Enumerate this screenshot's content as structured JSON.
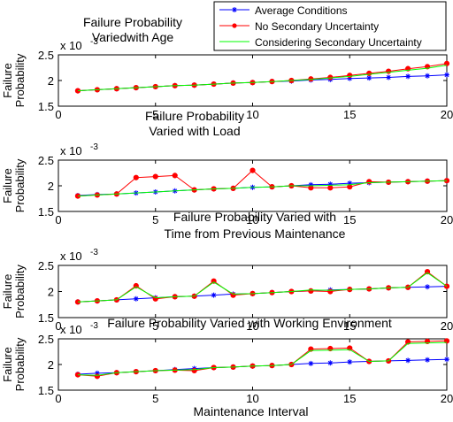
{
  "colors": {
    "average": "#0000ff",
    "no_secondary": "#ff0000",
    "considering_secondary": "#00ff00",
    "axis": "#000000"
  },
  "legend": {
    "items": [
      {
        "label": "Average Conditions",
        "color_key": "average",
        "marker": "star"
      },
      {
        "label": "No Secondary Uncertainty",
        "color_key": "no_secondary",
        "marker": "dot"
      },
      {
        "label": "Considering Secondary Uncertainty",
        "color_key": "considering_secondary",
        "marker": "none"
      }
    ]
  },
  "shared_xlabel": "Maintenance Interval",
  "chart_data": [
    {
      "type": "line",
      "title": "Failure Probability\nVariedwith Age",
      "ylabel": "Failure\nProbability",
      "xlabel": "",
      "exponent_label": "x 10",
      "exponent_power": "-3",
      "xlim": [
        0,
        20
      ],
      "ylim": [
        1.5,
        2.5
      ],
      "xticks": [
        "0",
        "5",
        "10",
        "15",
        "20"
      ],
      "yticks": [
        "1.5",
        "2",
        "2.5"
      ],
      "x": [
        1,
        2,
        3,
        4,
        5,
        6,
        7,
        8,
        9,
        10,
        11,
        12,
        13,
        14,
        15,
        16,
        17,
        18,
        19,
        20
      ],
      "series": [
        {
          "name": "Average Conditions",
          "color_key": "average",
          "marker": "star",
          "values": [
            1.8,
            1.82,
            1.84,
            1.86,
            1.88,
            1.9,
            1.91,
            1.93,
            1.95,
            1.96,
            1.98,
            1.99,
            2.01,
            2.02,
            2.04,
            2.05,
            2.06,
            2.08,
            2.09,
            2.11
          ]
        },
        {
          "name": "No Secondary Uncertainty",
          "color_key": "no_secondary",
          "marker": "dot",
          "values": [
            1.8,
            1.82,
            1.84,
            1.86,
            1.88,
            1.9,
            1.91,
            1.93,
            1.95,
            1.96,
            1.98,
            2.0,
            2.03,
            2.06,
            2.1,
            2.14,
            2.18,
            2.23,
            2.27,
            2.33
          ]
        },
        {
          "name": "Considering Secondary Uncertainty",
          "color_key": "considering_secondary",
          "marker": "none",
          "values": [
            1.8,
            1.82,
            1.84,
            1.86,
            1.88,
            1.9,
            1.91,
            1.93,
            1.95,
            1.96,
            1.98,
            2.0,
            2.02,
            2.05,
            2.08,
            2.12,
            2.16,
            2.2,
            2.24,
            2.3
          ]
        }
      ]
    },
    {
      "type": "line",
      "title": "Failure Probability\nVaried with Load",
      "ylabel": "Failure\nProbability",
      "xlabel": "",
      "exponent_label": "x 10",
      "exponent_power": "-3",
      "xlim": [
        0,
        20
      ],
      "ylim": [
        1.5,
        2.5
      ],
      "xticks": [
        "0",
        "5",
        "10",
        "15",
        "20"
      ],
      "yticks": [
        "1.5",
        "2",
        "2.5"
      ],
      "x": [
        1,
        2,
        3,
        4,
        5,
        6,
        7,
        8,
        9,
        10,
        11,
        12,
        13,
        14,
        15,
        16,
        17,
        18,
        19,
        20
      ],
      "series": [
        {
          "name": "Average Conditions",
          "color_key": "average",
          "marker": "star",
          "values": [
            1.81,
            1.83,
            1.84,
            1.86,
            1.88,
            1.9,
            1.92,
            1.94,
            1.95,
            1.97,
            1.98,
            2.0,
            2.02,
            2.03,
            2.05,
            2.06,
            2.07,
            2.08,
            2.09,
            2.1
          ]
        },
        {
          "name": "No Secondary Uncertainty",
          "color_key": "no_secondary",
          "marker": "dot",
          "values": [
            1.8,
            1.82,
            1.84,
            2.16,
            2.18,
            2.2,
            1.92,
            1.94,
            1.95,
            2.3,
            1.98,
            2.0,
            1.96,
            1.96,
            1.98,
            2.08,
            2.07,
            2.08,
            2.09,
            2.1
          ]
        },
        {
          "name": "Considering Secondary Uncertainty",
          "color_key": "considering_secondary",
          "marker": "none",
          "values": [
            1.8,
            1.82,
            1.84,
            1.86,
            1.88,
            1.9,
            1.92,
            1.94,
            1.95,
            1.97,
            1.98,
            2.0,
            2.0,
            2.01,
            2.02,
            2.06,
            2.07,
            2.08,
            2.09,
            2.1
          ]
        }
      ]
    },
    {
      "type": "line",
      "title": "Failure Probability Varied with\nTime from Previous Maintenance",
      "ylabel": "Failure\nProbability",
      "xlabel": "",
      "exponent_label": "x 10",
      "exponent_power": "-3",
      "xlim": [
        0,
        20
      ],
      "ylim": [
        1.5,
        2.5
      ],
      "xticks": [
        "0",
        "5",
        "10",
        "15",
        "20"
      ],
      "yticks": [
        "1.5",
        "2",
        "2.5"
      ],
      "x": [
        1,
        2,
        3,
        4,
        5,
        6,
        7,
        8,
        9,
        10,
        11,
        12,
        13,
        14,
        15,
        16,
        17,
        18,
        19,
        20
      ],
      "series": [
        {
          "name": "Average Conditions",
          "color_key": "average",
          "marker": "star",
          "values": [
            1.8,
            1.82,
            1.84,
            1.86,
            1.88,
            1.9,
            1.91,
            1.93,
            1.95,
            1.96,
            1.98,
            2.0,
            2.01,
            2.03,
            2.04,
            2.05,
            2.07,
            2.08,
            2.09,
            2.1
          ]
        },
        {
          "name": "No Secondary Uncertainty",
          "color_key": "no_secondary",
          "marker": "dot",
          "values": [
            1.8,
            1.82,
            1.84,
            2.11,
            1.86,
            1.9,
            1.91,
            2.2,
            1.93,
            1.96,
            1.98,
            2.0,
            2.01,
            2.0,
            2.04,
            2.05,
            2.07,
            2.08,
            2.38,
            2.1
          ]
        },
        {
          "name": "Considering Secondary Uncertainty",
          "color_key": "considering_secondary",
          "marker": "none",
          "values": [
            1.8,
            1.82,
            1.84,
            2.09,
            1.88,
            1.9,
            1.91,
            2.18,
            1.95,
            1.96,
            1.98,
            2.0,
            2.03,
            2.02,
            2.04,
            2.05,
            2.07,
            2.08,
            2.36,
            2.1
          ]
        }
      ]
    },
    {
      "type": "line",
      "title": "Failure Probability Varied with Working Environment",
      "ylabel": "Failure\nProbability",
      "xlabel": "Maintenance Interval",
      "exponent_label": "x 10",
      "exponent_power": "-3",
      "xlim": [
        0,
        20
      ],
      "ylim": [
        1.5,
        2.5
      ],
      "xticks": [
        "0",
        "5",
        "10",
        "15",
        "20"
      ],
      "yticks": [
        "1.5",
        "2",
        "2.5"
      ],
      "x": [
        1,
        2,
        3,
        4,
        5,
        6,
        7,
        8,
        9,
        10,
        11,
        12,
        13,
        14,
        15,
        16,
        17,
        18,
        19,
        20
      ],
      "series": [
        {
          "name": "Average Conditions",
          "color_key": "average",
          "marker": "star",
          "values": [
            1.81,
            1.83,
            1.84,
            1.86,
            1.88,
            1.9,
            1.92,
            1.94,
            1.95,
            1.97,
            1.98,
            2.0,
            2.02,
            2.03,
            2.05,
            2.06,
            2.07,
            2.08,
            2.09,
            2.1
          ]
        },
        {
          "name": "No Secondary Uncertainty",
          "color_key": "no_secondary",
          "marker": "dot",
          "values": [
            1.8,
            1.77,
            1.84,
            1.86,
            1.88,
            1.89,
            1.88,
            1.94,
            1.95,
            1.97,
            1.98,
            2.0,
            2.3,
            2.31,
            2.32,
            2.06,
            2.07,
            2.44,
            2.45,
            2.46
          ]
        },
        {
          "name": "Considering Secondary Uncertainty",
          "color_key": "considering_secondary",
          "marker": "none",
          "values": [
            1.8,
            1.79,
            1.84,
            1.86,
            1.88,
            1.89,
            1.9,
            1.94,
            1.95,
            1.97,
            1.98,
            2.0,
            2.27,
            2.28,
            2.29,
            2.06,
            2.07,
            2.41,
            2.42,
            2.43
          ]
        }
      ]
    }
  ]
}
